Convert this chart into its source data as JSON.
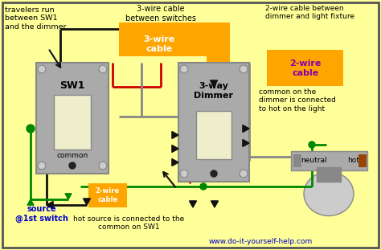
{
  "bg_color": "#FFFF99",
  "border_color": "#555555",
  "orange": "#FFA500",
  "blue": "#0000CC",
  "purple": "#8800AA",
  "green": "#008800",
  "red": "#CC0000",
  "black": "#111111",
  "gray": "#AAAAAA",
  "dgray": "#888888",
  "lgray": "#CCCCCC",
  "white": "#FFFFFF",
  "brown": "#994400",
  "sw1_label": "SW1",
  "dimmer_label": "3-way\nDimmer",
  "common_label": "common",
  "neutral_label": "neutral",
  "hot_label": "hot",
  "source_label": "source\n@1st switch",
  "cable3_top_label": "3-wire\ncable",
  "cable2_top_label": "2-wire\ncable",
  "cable2_bot_label": "2-wire\ncable",
  "top_left_text": "travelers run\nbetween SW1\nand the dimmer",
  "top_mid_text": "3-wire cable\nbetween switches",
  "top_right_text": "2-wire cable between\ndimmer and light fixture",
  "right_mid_text": "common on the\ndimmer is connected\nto hot on the light",
  "bot_mid_text": "hot source is connected to the\ncommon on SW1",
  "website": "www.do-it-yourself-help.com"
}
